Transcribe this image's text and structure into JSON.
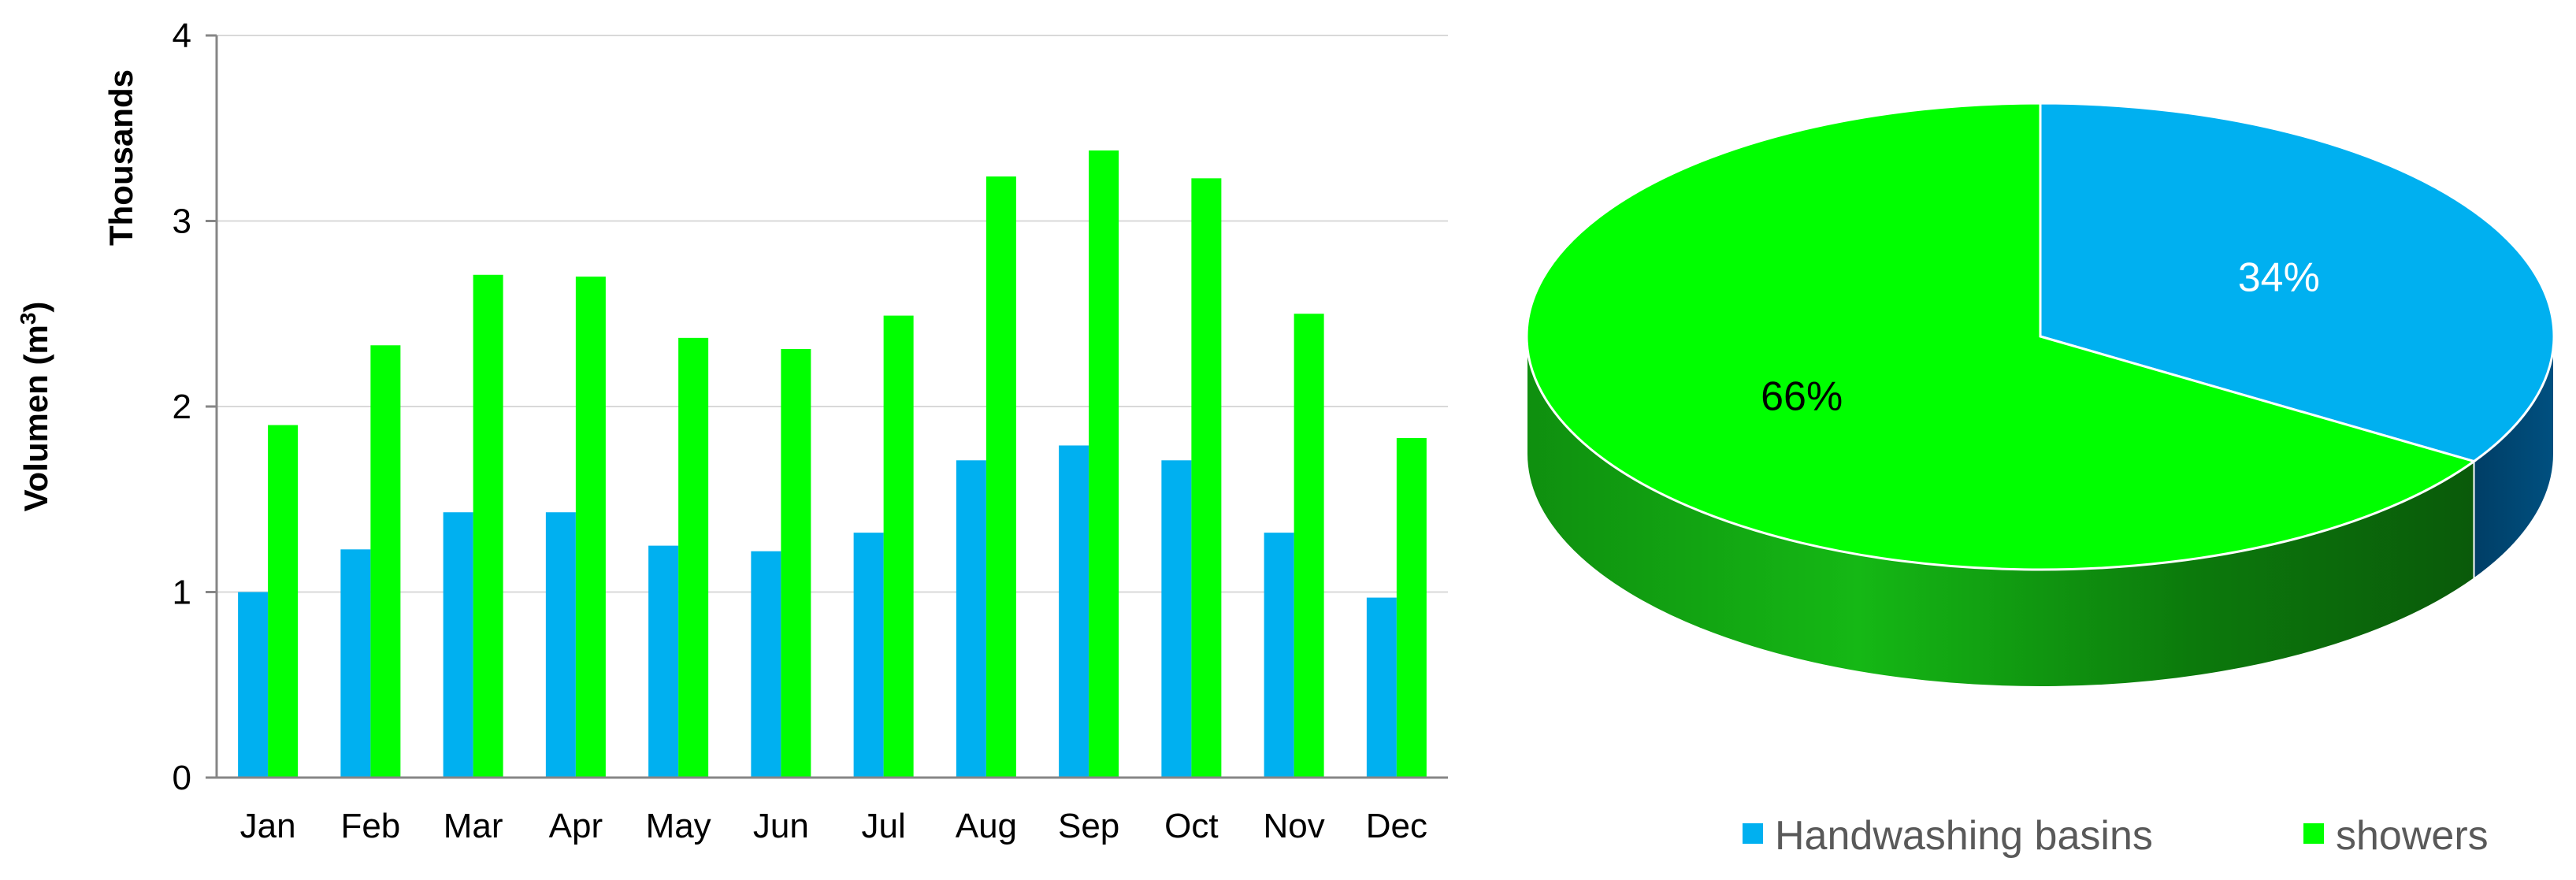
{
  "chart_data": [
    {
      "type": "bar",
      "categories": [
        "Jan",
        "Feb",
        "Mar",
        "Apr",
        "May",
        "Jun",
        "Jul",
        "Aug",
        "Sep",
        "Oct",
        "Nov",
        "Dec"
      ],
      "series": [
        {
          "values": [
            1.0,
            1.23,
            1.43,
            1.43,
            1.25,
            1.22,
            1.32,
            1.71,
            1.79,
            1.71,
            1.32,
            0.97
          ],
          "color": "#00B0F0"
        },
        {
          "values": [
            1.9,
            2.33,
            2.71,
            2.7,
            2.37,
            2.31,
            2.49,
            3.24,
            3.38,
            3.23,
            2.5,
            1.83
          ],
          "color": "#00FF00"
        }
      ],
      "ylabel": "Volumen (m3)",
      "ylabel_main": "Volumen (m",
      "ylabel_sup": "3",
      "ylabel_close": ")",
      "unit_label": "Thousands",
      "ylim": [
        0,
        4
      ],
      "yticks": [
        "0",
        "1",
        "2",
        "3",
        "4"
      ],
      "grid": true
    },
    {
      "type": "pie",
      "style": "3d",
      "slices": [
        {
          "name": "Handwashing basins",
          "value": 34,
          "label": "34%",
          "color": "#00B0F0",
          "label_color": "#ffffff"
        },
        {
          "name": "showers",
          "value": 66,
          "label": "66%",
          "color": "#00FF00",
          "label_color": "#000000"
        }
      ],
      "legend_placement": "bottom"
    }
  ]
}
